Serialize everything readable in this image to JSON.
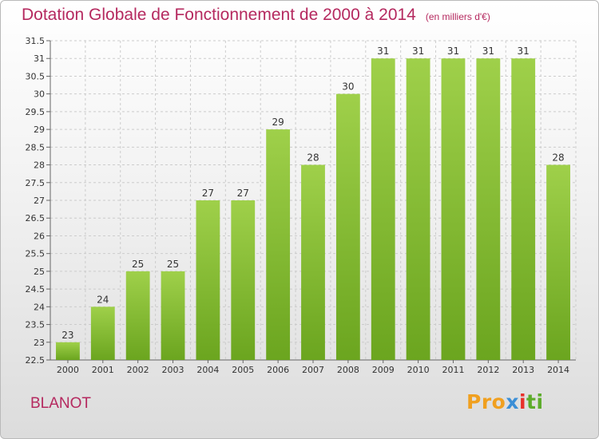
{
  "header": {
    "title": "Dotation Globale de Fonctionnement de 2000 à 2014",
    "unit": "(en milliers d'€)"
  },
  "footer": {
    "commune": "BLANOT",
    "logo": [
      "Pro",
      "x",
      "i",
      "ti"
    ]
  },
  "colors": {
    "bar_light": "#9fd04a",
    "bar_dark": "#6ba51f",
    "title": "#b5295f",
    "grid": "#cccccc"
  },
  "chart_data": {
    "type": "bar",
    "title": "Dotation Globale de Fonctionnement de 2000 à 2014",
    "xlabel": "",
    "ylabel": "",
    "categories": [
      "2000",
      "2001",
      "2002",
      "2003",
      "2004",
      "2005",
      "2006",
      "2007",
      "2008",
      "2009",
      "2010",
      "2011",
      "2012",
      "2013",
      "2014"
    ],
    "values": [
      23,
      24,
      25,
      25,
      27,
      27,
      29,
      28,
      30,
      31,
      31,
      31,
      31,
      31,
      28
    ],
    "ylim": [
      22.5,
      31.5
    ],
    "yticks": [
      "22.5",
      "23",
      "23.5",
      "24",
      "24.5",
      "25",
      "25.5",
      "26",
      "26.5",
      "27",
      "27.5",
      "28",
      "28.5",
      "29",
      "29.5",
      "30",
      "30.5",
      "31",
      "31.5"
    ],
    "grid": "horizontal dashed",
    "legend": "none"
  }
}
